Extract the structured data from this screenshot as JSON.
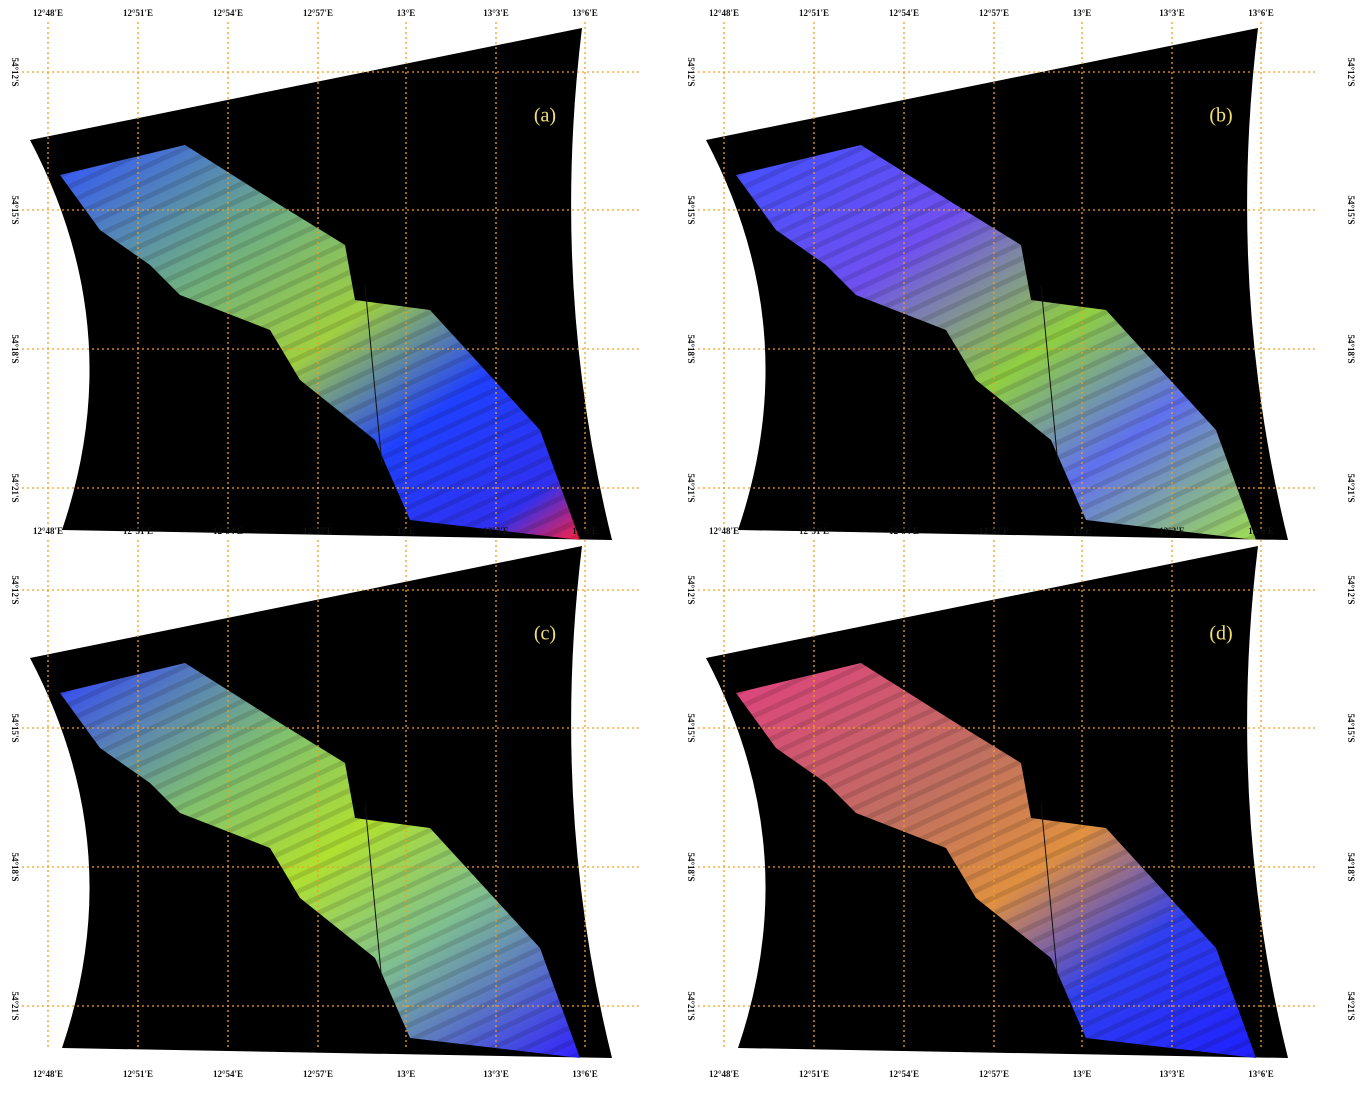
{
  "panels": [
    {
      "label": "(a)"
    },
    {
      "label": "(b)"
    },
    {
      "label": "(c)"
    },
    {
      "label": "(d)"
    }
  ],
  "lon_labels": [
    "12°48'E",
    "12°51'E",
    "12°54'E",
    "12°57'E",
    "13°E",
    "13°3'E",
    "13°6'E"
  ],
  "lat_labels": [
    "54°12'S",
    "54°15'S",
    "54°18'S",
    "54°21'S"
  ]
}
